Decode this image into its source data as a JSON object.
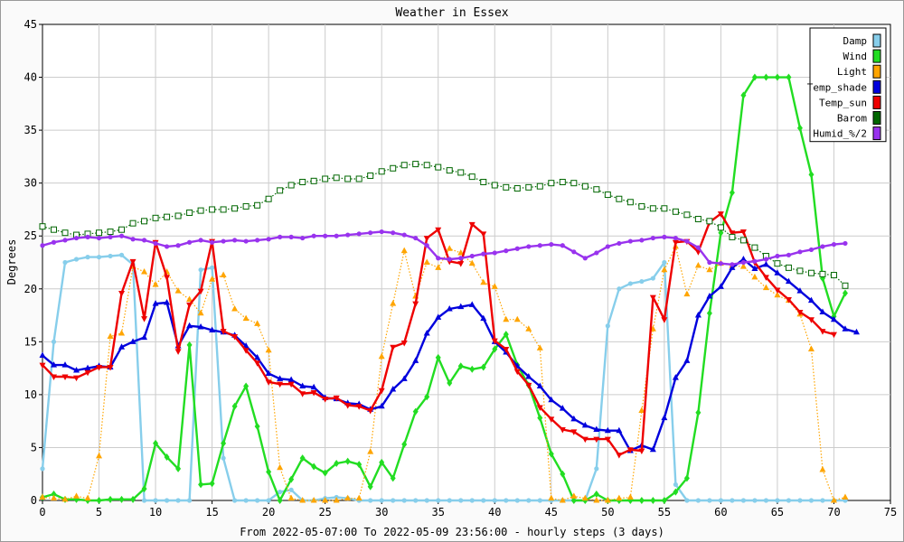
{
  "chart_data": {
    "type": "line",
    "title": "Weather in Essex",
    "xlabel": "From 2022-05-07:00 To 2022-05-09 23:56:00 - hourly steps (3 days)",
    "ylabel": "Degrees",
    "xlim": [
      0,
      75
    ],
    "ylim": [
      0,
      45
    ],
    "x_ticks": [
      0,
      5,
      10,
      15,
      20,
      25,
      30,
      35,
      40,
      45,
      50,
      55,
      60,
      65,
      70,
      75
    ],
    "y_ticks": [
      0,
      5,
      10,
      15,
      20,
      25,
      30,
      35,
      40,
      45
    ],
    "grid": true,
    "legend_position": "top-right",
    "series": [
      {
        "name": "Damp",
        "color": "#87ceeb",
        "marker": "dot",
        "style": "solid",
        "values": [
          3,
          15,
          22.5,
          22.8,
          23,
          23,
          23.1,
          23.2,
          22.3,
          0,
          0,
          0,
          0,
          0,
          21.8,
          22,
          4,
          0,
          0,
          0,
          0,
          0.8,
          1,
          0,
          0,
          0.2,
          0.3,
          0.2,
          0,
          0,
          0,
          0,
          0,
          0,
          0,
          0,
          0,
          0,
          0,
          0,
          0,
          0,
          0,
          0,
          0,
          0,
          0,
          0,
          0,
          3,
          16.5,
          20,
          20.5,
          20.7,
          21,
          22.5,
          1.5,
          0,
          0,
          0,
          0,
          0,
          0,
          0,
          0,
          0,
          0,
          0,
          0,
          0,
          0,
          0
        ]
      },
      {
        "name": "Wind",
        "color": "#22dd22",
        "marker": "diamond",
        "style": "solid",
        "values": [
          0.3,
          0.6,
          0.1,
          0.1,
          0,
          0,
          0.1,
          0.1,
          0.1,
          1.1,
          5.4,
          4.1,
          3,
          14.7,
          1.5,
          1.6,
          5.4,
          8.9,
          10.8,
          7,
          2.7,
          0,
          2,
          4,
          3.2,
          2.6,
          3.5,
          3.7,
          3.4,
          1.3,
          3.6,
          2.1,
          5.3,
          8.4,
          9.8,
          13.5,
          11.1,
          12.7,
          12.4,
          12.6,
          14.3,
          15.7,
          12.8,
          10.9,
          7.8,
          4.4,
          2.5,
          0,
          0,
          0.6,
          0,
          0,
          0,
          0,
          0,
          0,
          0.8,
          2.1,
          8.3,
          17.7,
          25.3,
          29.1,
          38.3,
          40,
          40,
          40,
          40,
          35.2,
          30.8,
          21,
          17.4,
          19.6
        ]
      },
      {
        "name": "Light",
        "color": "#ffa500",
        "marker": "triangle-up",
        "style": "dotted",
        "values": [
          0.3,
          0.2,
          0.1,
          0.4,
          0.2,
          4.2,
          15.5,
          15.8,
          22.1,
          21.6,
          20.4,
          21.6,
          19.8,
          19,
          17.7,
          20.9,
          21.3,
          18.1,
          17.2,
          16.7,
          14.2,
          3.1,
          0.2,
          0,
          0,
          0,
          0,
          0.2,
          0.2,
          4.6,
          13.6,
          18.6,
          23.6,
          19.3,
          22.5,
          22,
          23.8,
          23.4,
          22.4,
          20.6,
          20.2,
          17.1,
          17.1,
          16.2,
          14.4,
          0.2,
          0,
          0.4,
          0.2,
          0,
          0,
          0.2,
          0.3,
          8.5,
          16.2,
          21.8,
          24,
          19.5,
          22.2,
          21.8,
          22.4,
          22.2,
          22.1,
          21.1,
          20.1,
          19.4,
          18.9,
          17.6,
          14.3,
          2.9,
          0,
          0.3
        ]
      },
      {
        "name": "Temp_shade",
        "color": "#0000dd",
        "marker": "triangle-up",
        "style": "solid",
        "values": [
          13.7,
          12.8,
          12.8,
          12.3,
          12.5,
          12.7,
          12.6,
          14.5,
          15,
          15.4,
          18.6,
          18.7,
          14.6,
          16.5,
          16.4,
          16.1,
          15.9,
          15.6,
          14.6,
          13.5,
          12,
          11.5,
          11.4,
          10.8,
          10.7,
          9.7,
          9.6,
          9.2,
          9.1,
          8.6,
          8.9,
          10.5,
          11.5,
          13.2,
          15.8,
          17.3,
          18.1,
          18.3,
          18.5,
          17.2,
          15,
          14,
          12.7,
          11.7,
          10.8,
          9.5,
          8.7,
          7.7,
          7.1,
          6.7,
          6.6,
          6.6,
          4.7,
          5.2,
          4.8,
          7.8,
          11.6,
          13.2,
          17.5,
          19.3,
          20.2,
          22,
          22.8,
          21.9,
          22.3,
          21.5,
          20.7,
          19.8,
          18.9,
          17.8,
          17.1,
          16.2,
          15.9
        ]
      },
      {
        "name": "Temp_sun",
        "color": "#ee0000",
        "marker": "triangle-down",
        "style": "solid",
        "values": [
          12.8,
          11.7,
          11.7,
          11.6,
          12.1,
          12.6,
          12.6,
          19.6,
          22.6,
          17.2,
          24.4,
          21.1,
          14.1,
          18.5,
          19.8,
          24.5,
          16,
          15.5,
          14.2,
          13,
          11.2,
          11,
          11,
          10.1,
          10.2,
          9.6,
          9.7,
          9,
          8.9,
          8.5,
          10.4,
          14.5,
          14.9,
          18.6,
          24.8,
          25.6,
          22.6,
          22.4,
          26.1,
          25.2,
          15.1,
          14.3,
          12.2,
          10.9,
          8.8,
          7.7,
          6.7,
          6.5,
          5.8,
          5.8,
          5.8,
          4.3,
          4.8,
          4.7,
          19.2,
          17.1,
          24.4,
          24.5,
          23.5,
          26.3,
          27.1,
          25.3,
          25.4,
          22.5,
          21.1,
          19.9,
          19,
          17.8,
          17.1,
          16,
          15.7
        ]
      },
      {
        "name": "Barom",
        "color": "#006600",
        "marker": "hollow-square",
        "style": "dotted",
        "values": [
          25.9,
          25.6,
          25.3,
          25.1,
          25.2,
          25.3,
          25.4,
          25.6,
          26.2,
          26.4,
          26.7,
          26.8,
          26.9,
          27.2,
          27.4,
          27.5,
          27.5,
          27.6,
          27.8,
          27.9,
          28.5,
          29.3,
          29.8,
          30.1,
          30.2,
          30.4,
          30.5,
          30.4,
          30.4,
          30.7,
          31.1,
          31.4,
          31.7,
          31.8,
          31.7,
          31.5,
          31.2,
          31,
          30.6,
          30.1,
          29.8,
          29.6,
          29.5,
          29.6,
          29.7,
          30,
          30.1,
          30,
          29.7,
          29.4,
          28.9,
          28.5,
          28.2,
          27.8,
          27.6,
          27.6,
          27.3,
          27,
          26.6,
          26.4,
          25.8,
          24.9,
          24.6,
          23.9,
          23.1,
          22.4,
          22,
          21.7,
          21.5,
          21.4,
          21.3,
          20.3
        ]
      },
      {
        "name": "Humid_%/2",
        "color": "#9933ee",
        "marker": "dot",
        "style": "solid",
        "values": [
          24.1,
          24.4,
          24.6,
          24.8,
          24.9,
          24.8,
          24.9,
          25,
          24.7,
          24.6,
          24.3,
          24,
          24.1,
          24.4,
          24.6,
          24.4,
          24.5,
          24.6,
          24.5,
          24.6,
          24.7,
          24.9,
          24.9,
          24.8,
          25,
          25,
          25,
          25.1,
          25.2,
          25.3,
          25.4,
          25.3,
          25.1,
          24.8,
          24.1,
          22.9,
          22.8,
          22.9,
          23.1,
          23.3,
          23.4,
          23.6,
          23.8,
          24,
          24.1,
          24.2,
          24.1,
          23.5,
          22.9,
          23.4,
          24,
          24.3,
          24.5,
          24.6,
          24.8,
          24.9,
          24.8,
          24.5,
          23.9,
          22.5,
          22.4,
          22.3,
          22.5,
          22.6,
          22.8,
          23.1,
          23.2,
          23.5,
          23.7,
          24,
          24.2,
          24.3
        ]
      }
    ]
  }
}
